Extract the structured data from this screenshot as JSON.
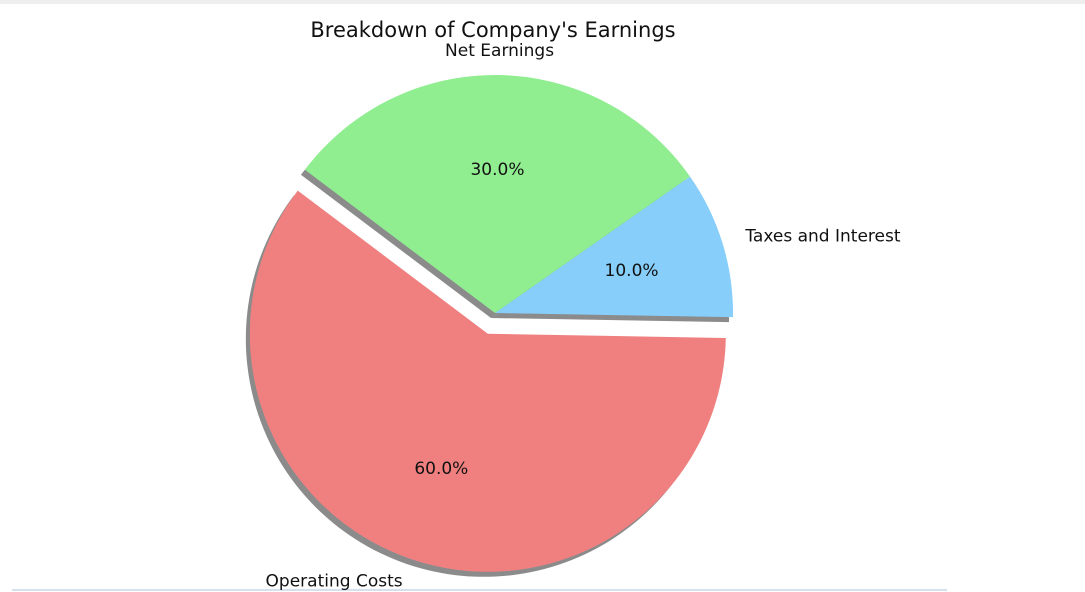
{
  "chart_data": {
    "type": "pie",
    "title": "Breakdown of Company's Earnings",
    "categories": [
      "Taxes and Interest",
      "Net Earnings",
      "Operating Costs"
    ],
    "values": [
      10,
      30,
      60
    ],
    "value_labels": [
      "10.0%",
      "30.0%",
      "60.0%"
    ],
    "colors": [
      "#87cefa",
      "#90ee90",
      "#f08080"
    ],
    "explode": [
      false,
      false,
      true
    ],
    "shadow": true
  }
}
